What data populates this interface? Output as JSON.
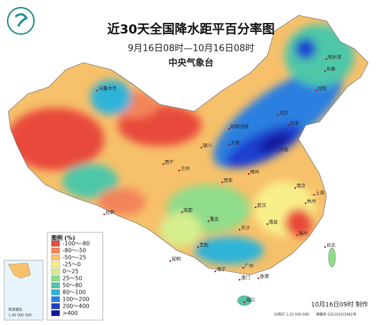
{
  "title": "近30天全国降水距平百分率图",
  "subtitle": "9月16日08时—10月16日08时",
  "agency": "中央气象台",
  "legend": {
    "title": "图例 (%)",
    "items": [
      {
        "label": "-100～-80",
        "color": "#e8493a"
      },
      {
        "label": "-80～-50",
        "color": "#f3845a"
      },
      {
        "label": "-50～-25",
        "color": "#f7c06a"
      },
      {
        "label": "-25～0",
        "color": "#f8ee8a"
      },
      {
        "label": "0～25",
        "color": "#d6ef8e"
      },
      {
        "label": "25～50",
        "color": "#8fdc8a"
      },
      {
        "label": "50～80",
        "color": "#4ec7a8"
      },
      {
        "label": "80～100",
        "color": "#2fb3d8"
      },
      {
        "label": "100～200",
        "color": "#2b7fe0"
      },
      {
        "label": "200～400",
        "color": "#1f3fd0"
      },
      {
        "label": ">400",
        "color": "#12179a"
      }
    ]
  },
  "cities": [
    "乌鲁木齐",
    "呼和浩特",
    "银川",
    "西宁",
    "兰州",
    "西安",
    "拉萨",
    "成都",
    "重庆",
    "贵阳",
    "昆明",
    "南宁",
    "广州",
    "香港",
    "澳门",
    "海口",
    "长沙",
    "武汉",
    "南昌",
    "福州",
    "台北",
    "杭州",
    "上海",
    "南京",
    "郑州",
    "济南",
    "太原",
    "北京",
    "天津",
    "沈阳",
    "长春",
    "哈尔滨"
  ],
  "inset": {
    "title": "南海诸岛",
    "scale": "1:40 000 000"
  },
  "footer": {
    "made": "10月16日09时 制作",
    "scale": "比例尺 1:20 000 000",
    "approval": "审图号 GS(2019)3082号"
  }
}
